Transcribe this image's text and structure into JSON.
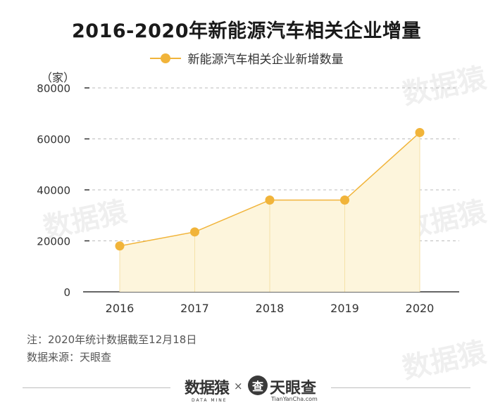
{
  "title": "2016-2020年新能源汽车相关企业增量",
  "unit_label": "（家）",
  "legend_label": "新能源汽车相关企业新增数量",
  "note": "注：2020年统计数据截至12月18日",
  "source": "数据来源：天眼查",
  "brands": {
    "datamine": "数据猿",
    "datamine_sub": "DATA MINE",
    "separator": "×",
    "tianyancha_logo": "查",
    "tianyancha": "天眼查",
    "tianyancha_url": "TianYanCha.com"
  },
  "watermark_text": "数据猿",
  "colors": {
    "line": "#f1b43a",
    "fill": "#fdf5dc",
    "drop": "#f5e1a8"
  },
  "chart_data": {
    "type": "area",
    "title": "2016-2020年新能源汽车相关企业增量",
    "ylabel": "（家）",
    "xlabel": "",
    "categories": [
      "2016",
      "2017",
      "2018",
      "2019",
      "2020"
    ],
    "series": [
      {
        "name": "新能源汽车相关企业新增数量",
        "values": [
          18000,
          23500,
          36000,
          36000,
          62500
        ]
      }
    ],
    "ylim": [
      0,
      80000
    ],
    "yticks": [
      0,
      20000,
      40000,
      60000,
      80000
    ],
    "ytick_labels": [
      "0",
      "20000",
      "40000",
      "60000",
      "80000"
    ],
    "grid": true,
    "legend": "top-center"
  }
}
